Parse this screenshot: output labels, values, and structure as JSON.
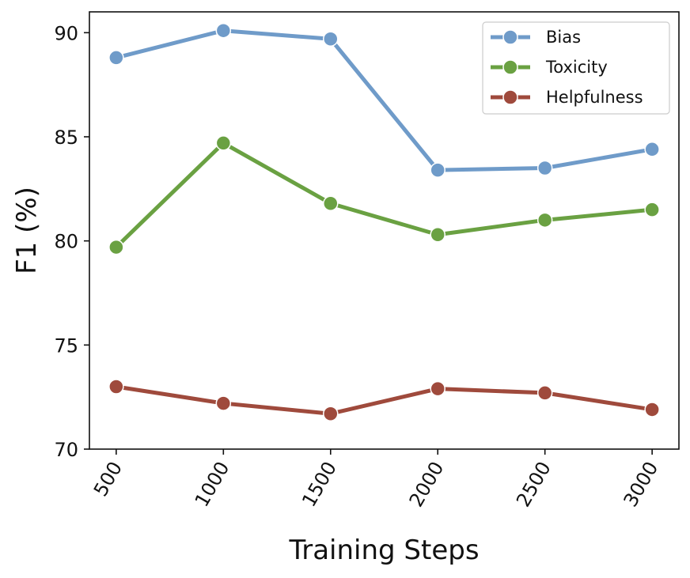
{
  "chart_data": {
    "type": "line",
    "title": "",
    "xlabel": "Training Steps",
    "ylabel": "F1  (%)",
    "x": [
      500,
      1000,
      1500,
      2000,
      2500,
      3000
    ],
    "x_tick_labels": [
      "500",
      "1000",
      "1500",
      "2000",
      "2500",
      "3000"
    ],
    "ylim": [
      70,
      91
    ],
    "y_ticks": [
      70,
      75,
      80,
      85,
      90
    ],
    "y_tick_labels": [
      "70",
      "75",
      "80",
      "85",
      "90"
    ],
    "grid": false,
    "legend_position": "top-right",
    "series": [
      {
        "name": "Bias",
        "color": "#6f9bc9",
        "values": [
          88.8,
          90.1,
          89.7,
          83.4,
          83.5,
          84.4
        ]
      },
      {
        "name": "Toxicity",
        "color": "#6aa142",
        "values": [
          79.7,
          84.7,
          81.8,
          80.3,
          81.0,
          81.5
        ]
      },
      {
        "name": "Helpfulness",
        "color": "#9f4a3c",
        "values": [
          73.0,
          72.2,
          71.7,
          72.9,
          72.7,
          71.9
        ]
      }
    ]
  }
}
